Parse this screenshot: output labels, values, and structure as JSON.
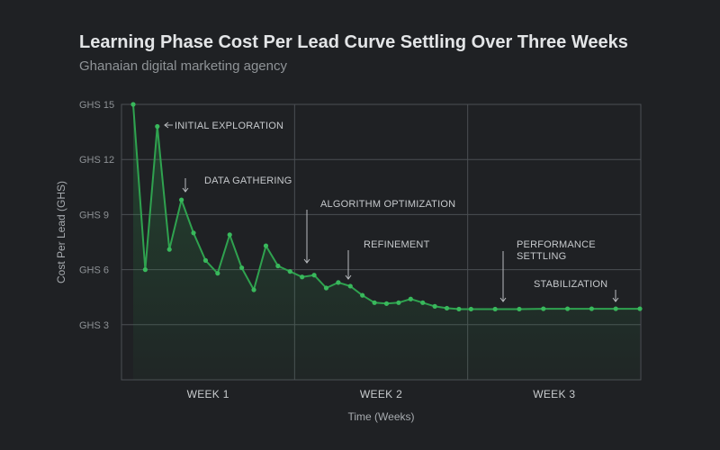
{
  "chart_data": {
    "type": "line",
    "title": "Learning Phase Cost Per Lead Curve Settling Over Three Weeks",
    "subtitle": "Ghanaian digital marketing agency",
    "xlabel": "Time (Weeks)",
    "ylabel": "Cost Per Lead (GHS)",
    "ylim": [
      0,
      15
    ],
    "yticks": [
      {
        "value": 15,
        "label": "GHS 15"
      },
      {
        "value": 12,
        "label": "GHS 12"
      },
      {
        "value": 9,
        "label": "GHS 9"
      },
      {
        "value": 6,
        "label": "GHS 6"
      },
      {
        "value": 3,
        "label": "GHS 3"
      }
    ],
    "xlim": [
      1,
      22
    ],
    "categories": [
      "WEEK 1",
      "WEEK 2",
      "WEEK 3"
    ],
    "grid": true,
    "colors": {
      "line": "#2fa24f",
      "fill": "#2fa24f",
      "grid": "#4b4f53"
    },
    "series": [
      {
        "name": "",
        "x": [
          1,
          1.5,
          2,
          2.5,
          3,
          3.5,
          4,
          4.5,
          5,
          5.5,
          6,
          6.5,
          7,
          7.5,
          8,
          8.5,
          9,
          9.5,
          10,
          10.5,
          11,
          11.5,
          12,
          12.5,
          13,
          13.5,
          14,
          14.5,
          15,
          16,
          17,
          18,
          19,
          20,
          21,
          22
        ],
        "values": [
          15.0,
          6.0,
          13.8,
          7.1,
          9.8,
          8.0,
          6.5,
          5.8,
          7.9,
          6.1,
          4.9,
          7.3,
          6.2,
          5.9,
          5.6,
          5.7,
          5.0,
          5.3,
          5.1,
          4.6,
          4.2,
          4.15,
          4.2,
          4.4,
          4.2,
          4.0,
          3.9,
          3.85,
          3.85,
          3.85,
          3.85,
          3.87,
          3.87,
          3.87,
          3.87,
          3.87
        ]
      }
    ],
    "annotations": [
      {
        "text": "INITIAL EXPLORATION",
        "x": 2,
        "y": 13.8,
        "arrow": "left"
      },
      {
        "text": "DATA GATHERING",
        "x": 3,
        "y": 9.8,
        "arrow": "down"
      },
      {
        "text": "ALGORITHM OPTIMIZATION",
        "x": 7.5,
        "y": 5.9,
        "arrow": "down"
      },
      {
        "text": "REFINEMENT",
        "x": 9,
        "y": 5.3,
        "arrow": "down"
      },
      {
        "text": "PERFORMANCE SETTLING",
        "x": 15,
        "y": 3.85,
        "arrow": "down"
      },
      {
        "text": "STABILIZATION",
        "x": 21,
        "y": 3.87,
        "arrow": "down"
      }
    ]
  }
}
